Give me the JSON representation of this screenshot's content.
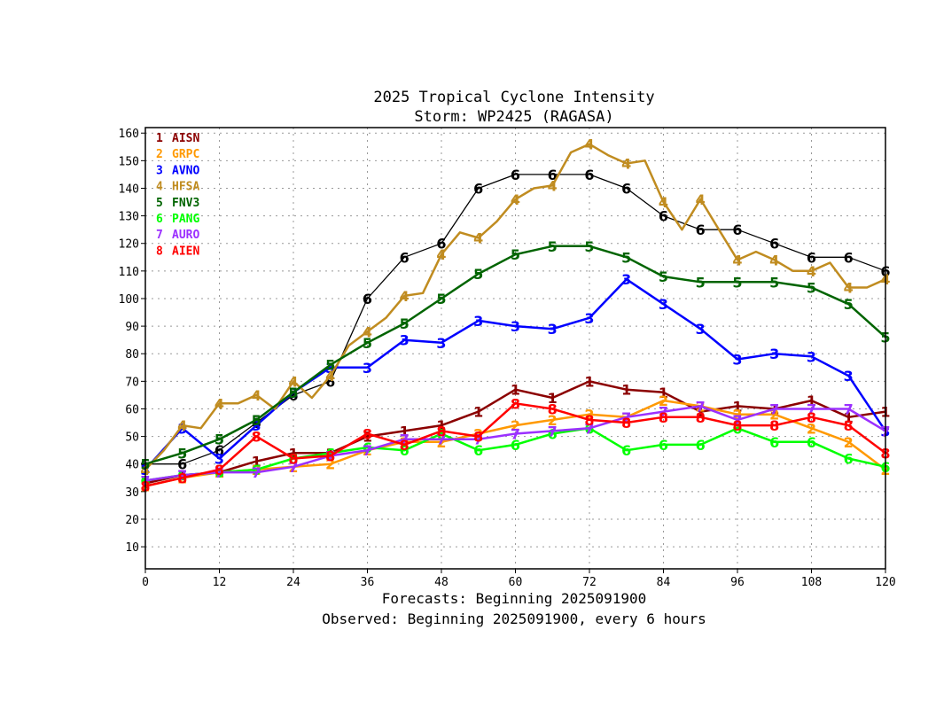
{
  "chart_data": {
    "type": "line",
    "title": "2025 Tropical Cyclone Intensity",
    "subtitle": "Storm: WP2425 (RAGASA)",
    "xlabel": "Forecasts: Beginning 2025091900",
    "xlabel2": "Observed: Beginning 2025091900, every 6 hours",
    "ylabel": "",
    "xlim": [
      0,
      120
    ],
    "ylim": [
      2,
      162
    ],
    "x_ticks": [
      0,
      12,
      24,
      36,
      48,
      60,
      72,
      84,
      96,
      108,
      120
    ],
    "y_ticks": [
      10,
      20,
      30,
      40,
      50,
      60,
      70,
      80,
      90,
      100,
      110,
      120,
      130,
      140,
      150,
      160
    ],
    "grid": true,
    "legend_position": "top-left",
    "series": [
      {
        "symbol": "1",
        "name": "AISN",
        "color": "#8B0000",
        "x": [
          0,
          6,
          12,
          18,
          24,
          30,
          36,
          42,
          48,
          54,
          60,
          66,
          72,
          78,
          84,
          90,
          96,
          102,
          108,
          114,
          120
        ],
        "y": [
          33,
          36,
          37,
          41,
          44,
          44,
          50,
          52,
          54,
          59,
          67,
          64,
          70,
          67,
          66,
          59,
          61,
          60,
          63,
          57,
          59
        ]
      },
      {
        "symbol": "2",
        "name": "GRPC",
        "color": "#FF9900",
        "x": [
          0,
          6,
          12,
          18,
          24,
          30,
          36,
          42,
          48,
          54,
          60,
          66,
          72,
          78,
          84,
          90,
          96,
          102,
          108,
          114,
          120
        ],
        "y": [
          32,
          35,
          37,
          38,
          39,
          40,
          45,
          48,
          48,
          51,
          54,
          56,
          58,
          57,
          63,
          61,
          58,
          58,
          53,
          48,
          38
        ]
      },
      {
        "symbol": "3",
        "name": "AVNO",
        "color": "#0000FF",
        "x": [
          0,
          6,
          12,
          18,
          24,
          30,
          36,
          42,
          48,
          54,
          60,
          66,
          72,
          78,
          84,
          90,
          96,
          102,
          108,
          114,
          120
        ],
        "y": [
          38,
          53,
          42,
          54,
          66,
          75,
          75,
          85,
          84,
          92,
          90,
          89,
          93,
          107,
          98,
          89,
          78,
          80,
          79,
          72,
          52
        ]
      },
      {
        "symbol": "4",
        "name": "HFSA",
        "color": "#C08C20",
        "x": [
          0,
          3,
          6,
          9,
          12,
          15,
          18,
          21,
          24,
          27,
          30,
          33,
          36,
          39,
          42,
          45,
          48,
          51,
          54,
          57,
          60,
          63,
          66,
          69,
          72,
          75,
          78,
          81,
          84,
          87,
          90,
          93,
          96,
          99,
          102,
          105,
          108,
          111,
          114,
          117,
          120
        ],
        "y": [
          38,
          45,
          54,
          53,
          62,
          62,
          65,
          60,
          70,
          64,
          72,
          83,
          88,
          93,
          101,
          102,
          116,
          124,
          122,
          128,
          136,
          140,
          141,
          153,
          156,
          152,
          149,
          150,
          135,
          125,
          136,
          125,
          114,
          117,
          114,
          110,
          110,
          113,
          104,
          104,
          107
        ]
      },
      {
        "symbol": "5",
        "name": "FNV3",
        "color": "#006400",
        "x": [
          0,
          6,
          12,
          18,
          24,
          30,
          36,
          42,
          48,
          54,
          60,
          66,
          72,
          78,
          84,
          90,
          96,
          102,
          108,
          114,
          120
        ],
        "y": [
          40,
          44,
          49,
          56,
          66,
          76,
          84,
          91,
          100,
          109,
          116,
          119,
          119,
          115,
          108,
          106,
          106,
          106,
          104,
          98,
          86
        ]
      },
      {
        "symbol": "6",
        "name": "PANG",
        "color": "#00FF00",
        "x": [
          0,
          6,
          12,
          18,
          24,
          30,
          36,
          42,
          48,
          54,
          60,
          66,
          72,
          78,
          84,
          90,
          96,
          102,
          108,
          114,
          120
        ],
        "y": [
          34,
          36,
          37,
          38,
          42,
          44,
          46,
          45,
          51,
          45,
          47,
          51,
          53,
          45,
          47,
          47,
          53,
          48,
          48,
          42,
          39
        ]
      },
      {
        "symbol": "7",
        "name": "AURO",
        "color": "#9B30FF",
        "x": [
          0,
          6,
          12,
          18,
          24,
          30,
          36,
          42,
          48,
          54,
          60,
          66,
          72,
          78,
          84,
          90,
          96,
          102,
          108,
          114,
          120
        ],
        "y": [
          34,
          36,
          37,
          37,
          39,
          43,
          45,
          49,
          49,
          49,
          51,
          52,
          53,
          57,
          59,
          61,
          56,
          60,
          60,
          60,
          52
        ]
      },
      {
        "symbol": "8",
        "name": "AIEN",
        "color": "#FF0000",
        "x": [
          0,
          6,
          12,
          18,
          24,
          30,
          36,
          42,
          48,
          54,
          60,
          66,
          72,
          78,
          84,
          90,
          96,
          102,
          108,
          114,
          120
        ],
        "y": [
          32,
          35,
          38,
          50,
          42,
          43,
          51,
          47,
          52,
          50,
          62,
          60,
          56,
          55,
          57,
          57,
          54,
          54,
          57,
          54,
          44
        ]
      }
    ],
    "observed": {
      "symbol": "6",
      "name": "Observed",
      "color": "#000000",
      "x": [
        0,
        6,
        12,
        18,
        24,
        30,
        36,
        42,
        48,
        54,
        60,
        66,
        72,
        78,
        84,
        90,
        96,
        102,
        108,
        114,
        120
      ],
      "y": [
        40,
        40,
        45,
        55,
        65,
        70,
        100,
        115,
        120,
        140,
        145,
        145,
        145,
        140,
        130,
        125,
        125,
        120,
        115,
        115,
        110
      ]
    }
  }
}
